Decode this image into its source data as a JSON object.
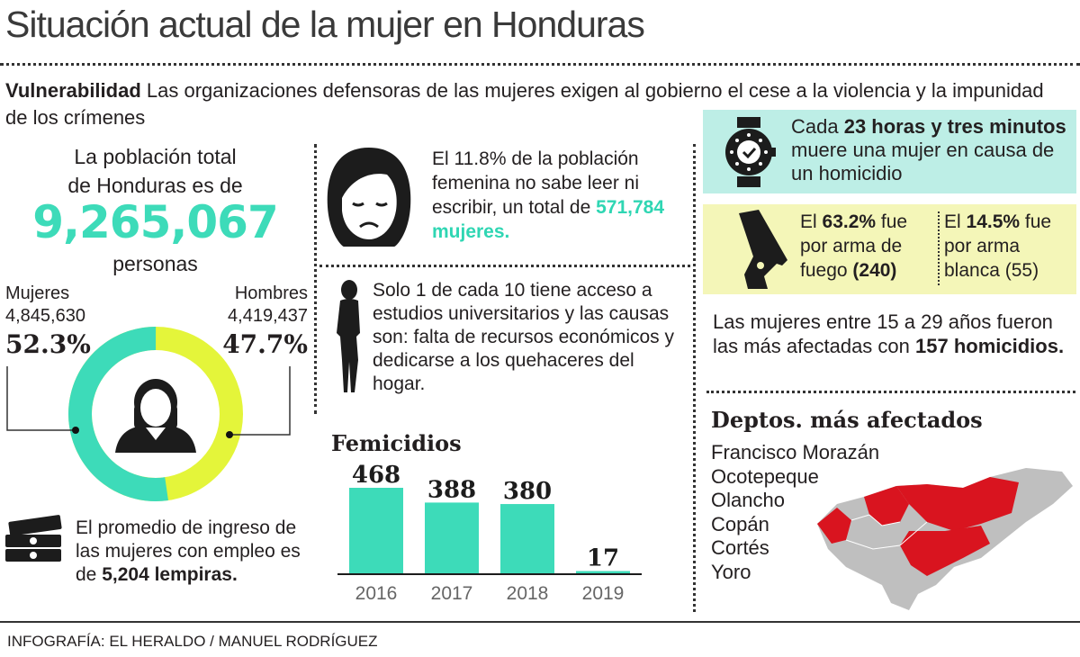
{
  "title": "Situación actual de la mujer en Honduras",
  "subtitle": {
    "bold": "Vulnerabilidad",
    "text": " Las organizaciones defensoras de las mujeres exigen al gobierno el cese a la violencia y la impunidad de los crímenes"
  },
  "population": {
    "line1": "La población total",
    "line2": "de Honduras es de",
    "total": "9,265,067",
    "unit": "personas"
  },
  "colors": {
    "teal": "#3ddbb9",
    "lime": "#e4f53a",
    "teal_box": "#bdeee6",
    "yellow_box": "#f4f6b8",
    "map_red": "#d9141f",
    "map_gray": "#bfbfbf"
  },
  "chart_data": [
    {
      "type": "pie",
      "variant": "donut",
      "categories": [
        "Mujeres",
        "Hombres"
      ],
      "counts": [
        "4,845,630",
        "4,419,437"
      ],
      "values": [
        52.3,
        47.7
      ],
      "labels": [
        "52.3%",
        "47.7%"
      ]
    },
    {
      "type": "bar",
      "title": "Femicidios",
      "categories": [
        "2016",
        "2017",
        "2018",
        "2019"
      ],
      "values": [
        468,
        388,
        380,
        17
      ]
    }
  ],
  "income": {
    "text": "El promedio de ingreso de las mujeres con empleo es de ",
    "bold": "5,204 lempiras."
  },
  "literacy": {
    "text": "El 11.8% de la población femenina no sabe leer ni escribir, un total de ",
    "bold": "571,784 mujeres."
  },
  "university": {
    "text": "Solo 1 de cada 10 tiene acceso a estudios universitarios y las causas son: falta de recursos económicos y dedicarse a los quehaceres del hogar."
  },
  "homicide_rate": {
    "pre": "Cada ",
    "bold": "23 horas y tres minutos",
    "post": " muere una mujer en causa de un homicidio"
  },
  "weapons": [
    {
      "pre": "El ",
      "bold": "63.2%",
      "mid": " fue por arma de fuego ",
      "bold2": "(240)"
    },
    {
      "pre": "El ",
      "bold": "14.5%",
      "mid": " fue por arma blanca (55)",
      "bold2": ""
    }
  ],
  "age": {
    "text": "Las mujeres entre 15 a 29 años fueron las más afectadas con ",
    "bold": "157 homicidios."
  },
  "departments": {
    "title": "Deptos. más afectados",
    "items": [
      "Francisco Morazán",
      "Ocotepeque",
      "Olancho",
      "Copán",
      "Cortés",
      "Yoro"
    ]
  },
  "credit": "INFOGRAFÍA: EL HERALDO / MANUEL RODRÍGUEZ",
  "icons": [
    "woman-avatar-icon",
    "money-stack-icon",
    "sad-woman-face-icon",
    "woman-silhouette-icon",
    "watch-icon",
    "pistol-icon",
    "honduras-map"
  ]
}
